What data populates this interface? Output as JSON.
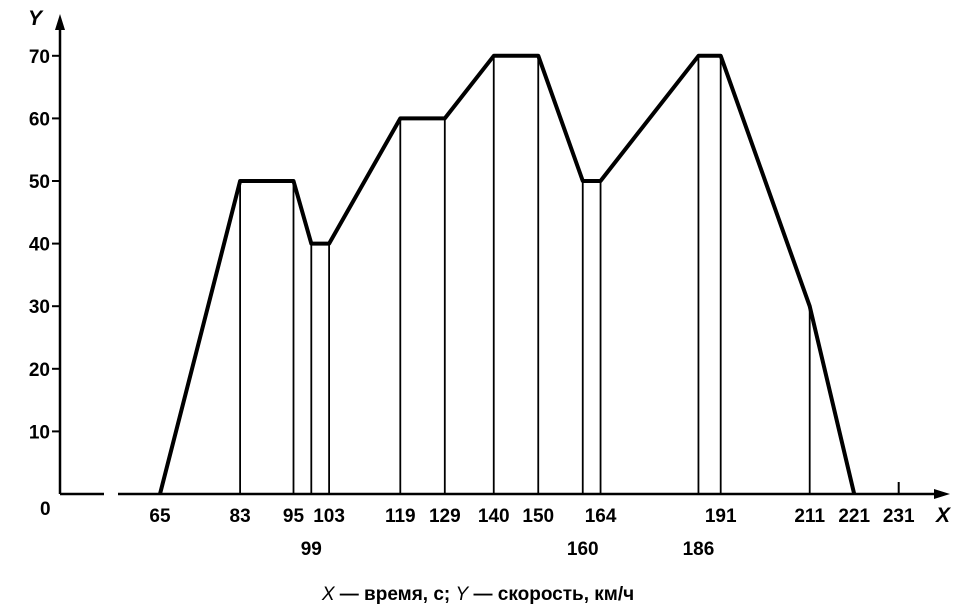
{
  "chart_data": {
    "type": "line",
    "xlabel": "X",
    "ylabel": "Y",
    "y_ticks": [
      0,
      10,
      20,
      30,
      40,
      50,
      60,
      70
    ],
    "x_ticks_row1": [
      65,
      83,
      95,
      103,
      119,
      129,
      140,
      150,
      164,
      191,
      211,
      221,
      231
    ],
    "x_ticks_row2": [
      99,
      160,
      186
    ],
    "series": [
      {
        "points": [
          [
            65,
            0
          ],
          [
            83,
            50
          ],
          [
            95,
            50
          ],
          [
            99,
            40
          ],
          [
            103,
            40
          ],
          [
            119,
            60
          ],
          [
            129,
            60
          ],
          [
            140,
            70
          ],
          [
            150,
            70
          ],
          [
            160,
            50
          ],
          [
            164,
            50
          ],
          [
            186,
            70
          ],
          [
            191,
            70
          ],
          [
            211,
            30
          ],
          [
            221,
            0
          ]
        ]
      }
    ],
    "vertical_lines_x": [
      83,
      95,
      99,
      103,
      119,
      129,
      140,
      150,
      160,
      164,
      186,
      191,
      211
    ],
    "xlim": [
      30,
      240
    ],
    "ylim": [
      0,
      75
    ],
    "grid": false,
    "caption": {
      "x_symbol": "X",
      "x_text": " — время, с; ",
      "y_symbol": "Y",
      "y_text": " — скорость, км/ч"
    }
  }
}
